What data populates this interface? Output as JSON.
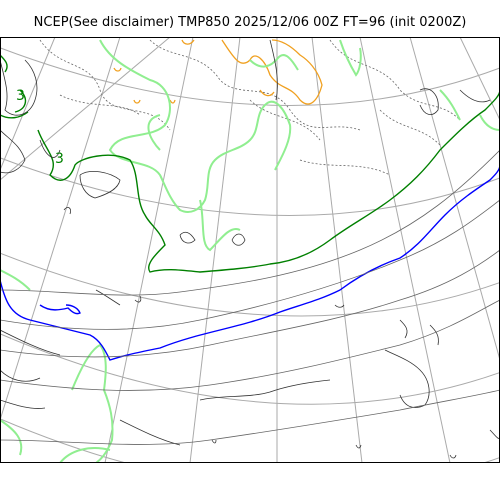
{
  "title": "NCEP(See disclaimer) TMP850 2025/12/06 00Z FT=96 (init 0200Z)",
  "contour_labels": [
    "3",
    "3"
  ],
  "colors": {
    "background": "#ffffff",
    "coastline": "#333333",
    "graticule": "#aaaaaa",
    "isotherm_dotted": "#666666",
    "isotherm_warm": "#f0a020",
    "isotherm_lightgreen": "#90ee90",
    "isotherm_green": "#008000",
    "isotherm_zero": "#0000ff"
  }
}
